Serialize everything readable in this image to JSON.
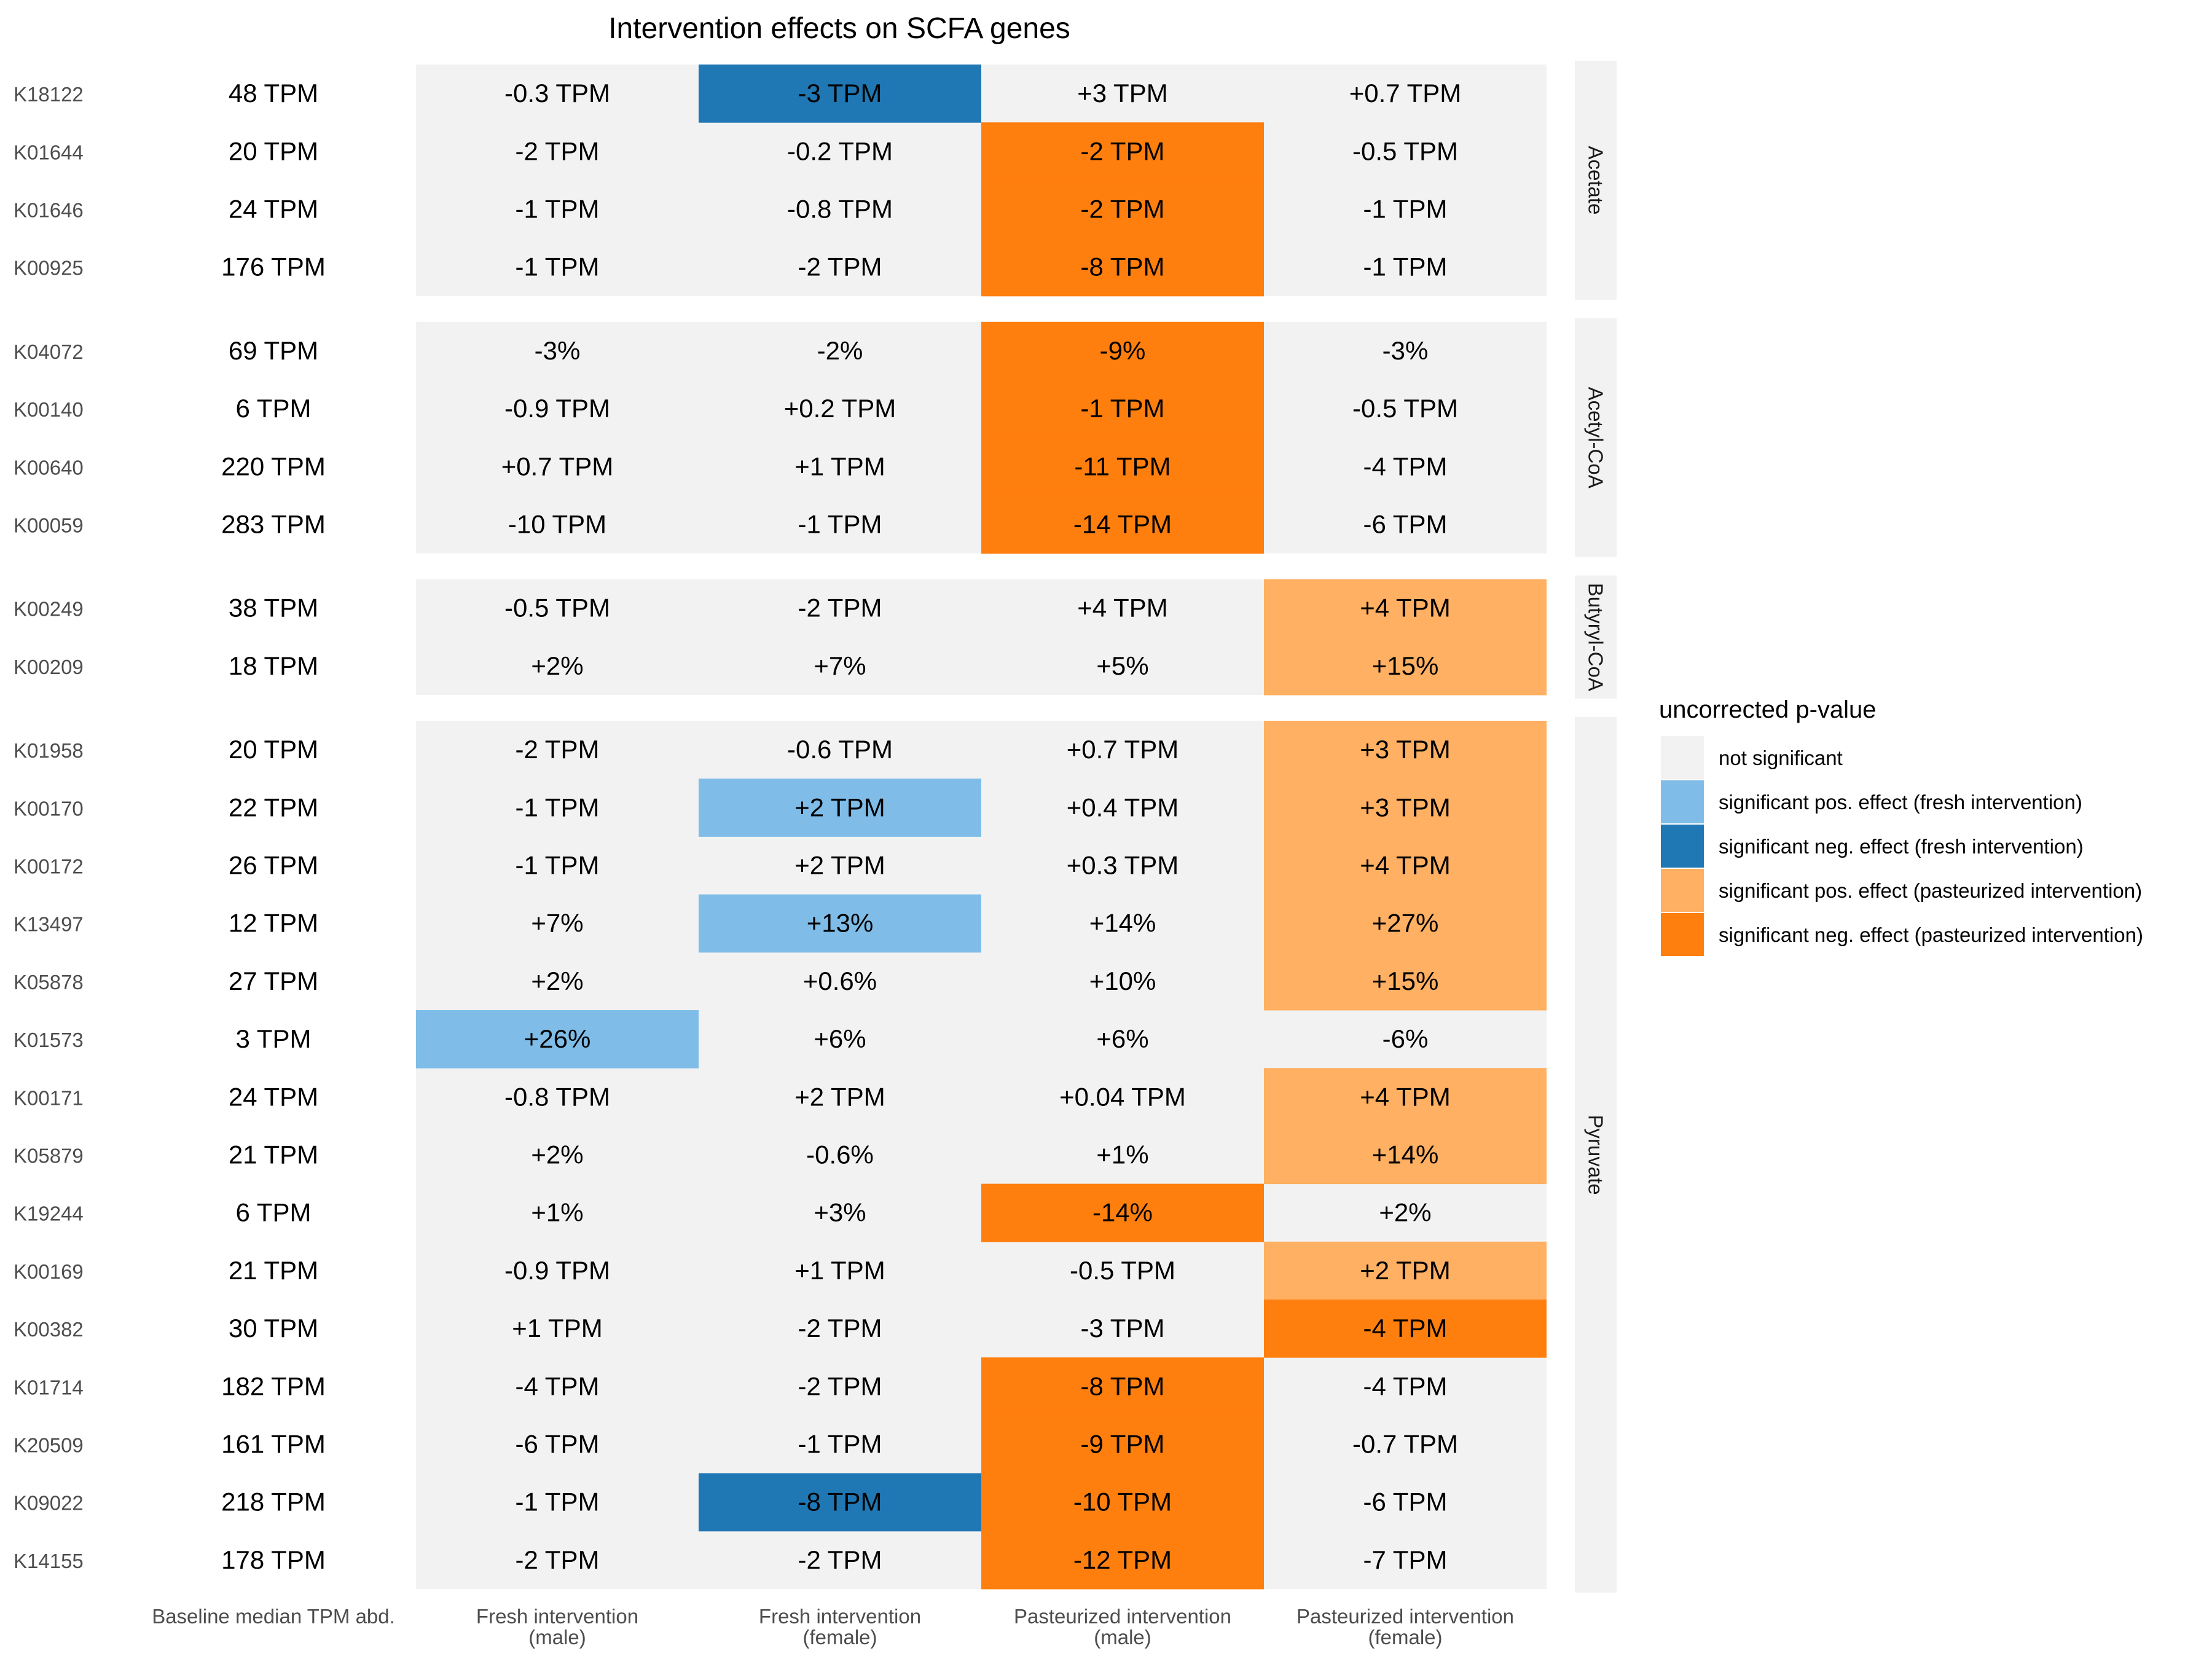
{
  "chart_data": {
    "type": "heatmap",
    "title": "Intervention effects on SCFA genes",
    "columns": [
      "Baseline median TPM abd.",
      "Fresh intervention\n(male)",
      "Fresh intervention\n(female)",
      "Pasteurized intervention\n(male)",
      "Pasteurized intervention\n(female)"
    ],
    "legend": {
      "title": "uncorrected p-value",
      "placement": "right",
      "items": [
        {
          "key": "ns",
          "label": "not significant",
          "color": "#f2f2f2"
        },
        {
          "key": "fp",
          "label": "significant pos. effect (fresh intervention)",
          "color": "#7fbde8"
        },
        {
          "key": "fn",
          "label": "significant neg. effect (fresh intervention)",
          "color": "#1f77b4"
        },
        {
          "key": "pp",
          "label": "significant pos. effect (pasteurized intervention)",
          "color": "#ffb062"
        },
        {
          "key": "pn",
          "label": "significant neg. effect (pasteurized intervention)",
          "color": "#ff7f0e"
        }
      ]
    },
    "groups": [
      {
        "name": "Acetate",
        "rows": [
          {
            "gene": "K18122",
            "baseline": "48 TPM",
            "cells": [
              [
                "-0.3 TPM",
                "ns"
              ],
              [
                "-3 TPM",
                "fn"
              ],
              [
                "+3 TPM",
                "ns"
              ],
              [
                "+0.7 TPM",
                "ns"
              ]
            ]
          },
          {
            "gene": "K01644",
            "baseline": "20 TPM",
            "cells": [
              [
                "-2 TPM",
                "ns"
              ],
              [
                "-0.2 TPM",
                "ns"
              ],
              [
                "-2 TPM",
                "pn"
              ],
              [
                "-0.5 TPM",
                "ns"
              ]
            ]
          },
          {
            "gene": "K01646",
            "baseline": "24 TPM",
            "cells": [
              [
                "-1 TPM",
                "ns"
              ],
              [
                "-0.8 TPM",
                "ns"
              ],
              [
                "-2 TPM",
                "pn"
              ],
              [
                "-1 TPM",
                "ns"
              ]
            ]
          },
          {
            "gene": "K00925",
            "baseline": "176 TPM",
            "cells": [
              [
                "-1 TPM",
                "ns"
              ],
              [
                "-2 TPM",
                "ns"
              ],
              [
                "-8 TPM",
                "pn"
              ],
              [
                "-1 TPM",
                "ns"
              ]
            ]
          }
        ]
      },
      {
        "name": "Acetyl-CoA",
        "rows": [
          {
            "gene": "K04072",
            "baseline": "69 TPM",
            "cells": [
              [
                "-3%",
                "ns"
              ],
              [
                "-2%",
                "ns"
              ],
              [
                "-9%",
                "pn"
              ],
              [
                "-3%",
                "ns"
              ]
            ]
          },
          {
            "gene": "K00140",
            "baseline": "6 TPM",
            "cells": [
              [
                "-0.9 TPM",
                "ns"
              ],
              [
                "+0.2 TPM",
                "ns"
              ],
              [
                "-1 TPM",
                "pn"
              ],
              [
                "-0.5 TPM",
                "ns"
              ]
            ]
          },
          {
            "gene": "K00640",
            "baseline": "220 TPM",
            "cells": [
              [
                "+0.7 TPM",
                "ns"
              ],
              [
                "+1 TPM",
                "ns"
              ],
              [
                "-11 TPM",
                "pn"
              ],
              [
                "-4 TPM",
                "ns"
              ]
            ]
          },
          {
            "gene": "K00059",
            "baseline": "283 TPM",
            "cells": [
              [
                "-10 TPM",
                "ns"
              ],
              [
                "-1 TPM",
                "ns"
              ],
              [
                "-14 TPM",
                "pn"
              ],
              [
                "-6 TPM",
                "ns"
              ]
            ]
          }
        ]
      },
      {
        "name": "Butyryl-CoA",
        "rows": [
          {
            "gene": "K00249",
            "baseline": "38 TPM",
            "cells": [
              [
                "-0.5 TPM",
                "ns"
              ],
              [
                "-2 TPM",
                "ns"
              ],
              [
                "+4 TPM",
                "ns"
              ],
              [
                "+4 TPM",
                "pp"
              ]
            ]
          },
          {
            "gene": "K00209",
            "baseline": "18 TPM",
            "cells": [
              [
                "+2%",
                "ns"
              ],
              [
                "+7%",
                "ns"
              ],
              [
                "+5%",
                "ns"
              ],
              [
                "+15%",
                "pp"
              ]
            ]
          }
        ]
      },
      {
        "name": "Pyruvate",
        "rows": [
          {
            "gene": "K01958",
            "baseline": "20 TPM",
            "cells": [
              [
                "-2 TPM",
                "ns"
              ],
              [
                "-0.6 TPM",
                "ns"
              ],
              [
                "+0.7 TPM",
                "ns"
              ],
              [
                "+3 TPM",
                "pp"
              ]
            ]
          },
          {
            "gene": "K00170",
            "baseline": "22 TPM",
            "cells": [
              [
                "-1 TPM",
                "ns"
              ],
              [
                "+2 TPM",
                "fp"
              ],
              [
                "+0.4 TPM",
                "ns"
              ],
              [
                "+3 TPM",
                "pp"
              ]
            ]
          },
          {
            "gene": "K00172",
            "baseline": "26 TPM",
            "cells": [
              [
                "-1 TPM",
                "ns"
              ],
              [
                "+2 TPM",
                "ns"
              ],
              [
                "+0.3 TPM",
                "ns"
              ],
              [
                "+4 TPM",
                "pp"
              ]
            ]
          },
          {
            "gene": "K13497",
            "baseline": "12 TPM",
            "cells": [
              [
                "+7%",
                "ns"
              ],
              [
                "+13%",
                "fp"
              ],
              [
                "+14%",
                "ns"
              ],
              [
                "+27%",
                "pp"
              ]
            ]
          },
          {
            "gene": "K05878",
            "baseline": "27 TPM",
            "cells": [
              [
                "+2%",
                "ns"
              ],
              [
                "+0.6%",
                "ns"
              ],
              [
                "+10%",
                "ns"
              ],
              [
                "+15%",
                "pp"
              ]
            ]
          },
          {
            "gene": "K01573",
            "baseline": "3 TPM",
            "cells": [
              [
                "+26%",
                "fp"
              ],
              [
                "+6%",
                "ns"
              ],
              [
                "+6%",
                "ns"
              ],
              [
                "-6%",
                "ns"
              ]
            ]
          },
          {
            "gene": "K00171",
            "baseline": "24 TPM",
            "cells": [
              [
                "-0.8 TPM",
                "ns"
              ],
              [
                "+2 TPM",
                "ns"
              ],
              [
                "+0.04 TPM",
                "ns"
              ],
              [
                "+4 TPM",
                "pp"
              ]
            ]
          },
          {
            "gene": "K05879",
            "baseline": "21 TPM",
            "cells": [
              [
                "+2%",
                "ns"
              ],
              [
                "-0.6%",
                "ns"
              ],
              [
                "+1%",
                "ns"
              ],
              [
                "+14%",
                "pp"
              ]
            ]
          },
          {
            "gene": "K19244",
            "baseline": "6 TPM",
            "cells": [
              [
                "+1%",
                "ns"
              ],
              [
                "+3%",
                "ns"
              ],
              [
                "-14%",
                "pn"
              ],
              [
                "+2%",
                "ns"
              ]
            ]
          },
          {
            "gene": "K00169",
            "baseline": "21 TPM",
            "cells": [
              [
                "-0.9 TPM",
                "ns"
              ],
              [
                "+1 TPM",
                "ns"
              ],
              [
                "-0.5 TPM",
                "ns"
              ],
              [
                "+2 TPM",
                "pp"
              ]
            ]
          },
          {
            "gene": "K00382",
            "baseline": "30 TPM",
            "cells": [
              [
                "+1 TPM",
                "ns"
              ],
              [
                "-2 TPM",
                "ns"
              ],
              [
                "-3 TPM",
                "ns"
              ],
              [
                "-4 TPM",
                "pn"
              ]
            ]
          },
          {
            "gene": "K01714",
            "baseline": "182 TPM",
            "cells": [
              [
                "-4 TPM",
                "ns"
              ],
              [
                "-2 TPM",
                "ns"
              ],
              [
                "-8 TPM",
                "pn"
              ],
              [
                "-4 TPM",
                "ns"
              ]
            ]
          },
          {
            "gene": "K20509",
            "baseline": "161 TPM",
            "cells": [
              [
                "-6 TPM",
                "ns"
              ],
              [
                "-1 TPM",
                "ns"
              ],
              [
                "-9 TPM",
                "pn"
              ],
              [
                "-0.7 TPM",
                "ns"
              ]
            ]
          },
          {
            "gene": "K09022",
            "baseline": "218 TPM",
            "cells": [
              [
                "-1 TPM",
                "ns"
              ],
              [
                "-8 TPM",
                "fn"
              ],
              [
                "-10 TPM",
                "pn"
              ],
              [
                "-6 TPM",
                "ns"
              ]
            ]
          },
          {
            "gene": "K14155",
            "baseline": "178 TPM",
            "cells": [
              [
                "-2 TPM",
                "ns"
              ],
              [
                "-2 TPM",
                "ns"
              ],
              [
                "-12 TPM",
                "pn"
              ],
              [
                "-7 TPM",
                "ns"
              ]
            ]
          }
        ]
      }
    ]
  }
}
